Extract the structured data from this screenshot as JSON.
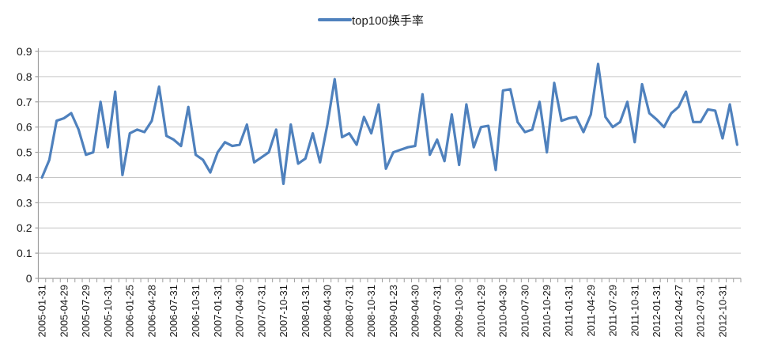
{
  "chart_data": {
    "type": "line",
    "legend": "top100换手率",
    "n_points": 96,
    "label_every": 3,
    "x_tick_labels": [
      "2005-01-31",
      "2005-04-29",
      "2005-07-29",
      "2005-10-31",
      "2006-01-25",
      "2006-04-28",
      "2006-07-31",
      "2006-10-31",
      "2007-01-31",
      "2007-04-30",
      "2007-07-31",
      "2007-10-31",
      "2008-01-31",
      "2008-04-30",
      "2008-07-31",
      "2008-10-31",
      "2009-01-23",
      "2009-04-30",
      "2009-07-31",
      "2009-10-30",
      "2010-01-29",
      "2010-04-30",
      "2010-07-30",
      "2010-10-29",
      "2011-01-31",
      "2011-04-29",
      "2011-07-29",
      "2011-10-31",
      "2012-01-31",
      "2012-04-27",
      "2012-07-31",
      "2012-10-31"
    ],
    "values": [
      0.4,
      0.47,
      0.625,
      0.635,
      0.655,
      0.59,
      0.49,
      0.5,
      0.7,
      0.52,
      0.74,
      0.41,
      0.575,
      0.59,
      0.58,
      0.625,
      0.76,
      0.565,
      0.55,
      0.525,
      0.68,
      0.49,
      0.47,
      0.42,
      0.5,
      0.54,
      0.525,
      0.53,
      0.61,
      0.46,
      0.48,
      0.5,
      0.59,
      0.375,
      0.61,
      0.455,
      0.475,
      0.575,
      0.46,
      0.61,
      0.79,
      0.56,
      0.575,
      0.53,
      0.64,
      0.575,
      0.69,
      0.435,
      0.5,
      0.51,
      0.52,
      0.525,
      0.73,
      0.49,
      0.55,
      0.465,
      0.65,
      0.45,
      0.69,
      0.52,
      0.6,
      0.605,
      0.43,
      0.745,
      0.75,
      0.62,
      0.58,
      0.59,
      0.7,
      0.5,
      0.775,
      0.625,
      0.635,
      0.64,
      0.58,
      0.65,
      0.85,
      0.64,
      0.6,
      0.62,
      0.7,
      0.54,
      0.77,
      0.655,
      0.63,
      0.6,
      0.655,
      0.68,
      0.74,
      0.62,
      0.62,
      0.67,
      0.665,
      0.555,
      0.69,
      0.53
    ],
    "y_ticks": [
      "0",
      "0.1",
      "0.2",
      "0.3",
      "0.4",
      "0.5",
      "0.6",
      "0.7",
      "0.8",
      "0.9"
    ],
    "ylim": [
      0,
      0.9
    ],
    "grid": "horizontal",
    "legend_position": "top-center",
    "colors": {
      "line": "#4F81BD",
      "gridline": "#C6C6C6",
      "axis": "#9E9E9E",
      "text": "#1A1A1A",
      "background": "#FFFFFF"
    }
  }
}
